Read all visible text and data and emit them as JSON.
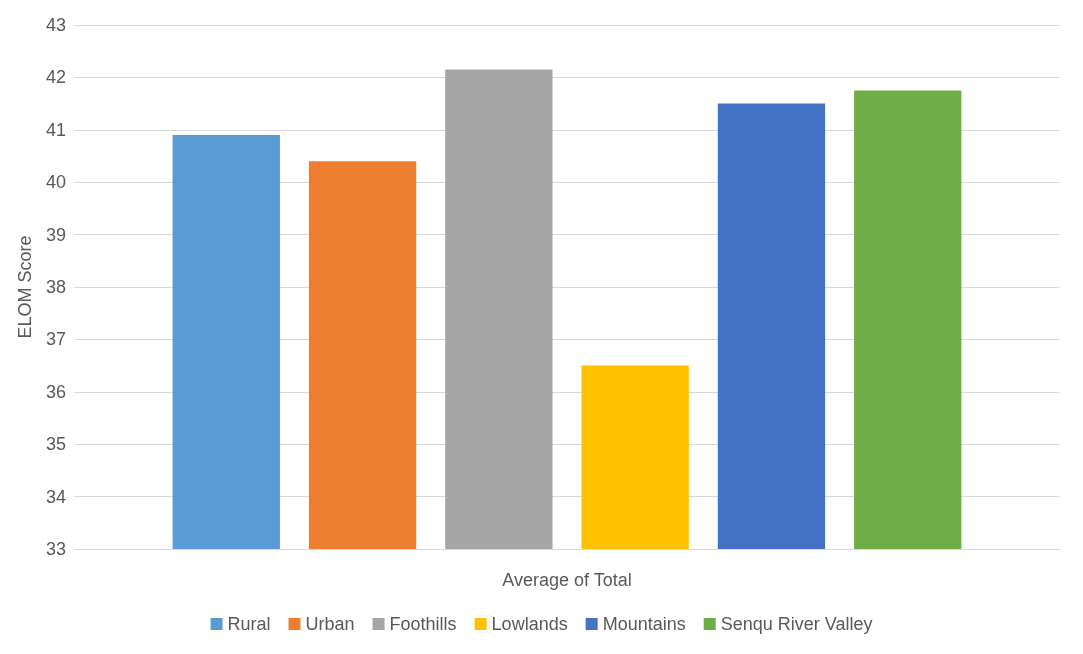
{
  "chart_data": {
    "type": "bar",
    "categories": [
      "Average of Total"
    ],
    "ylabel": "ELOM Score",
    "series": [
      {
        "name": "Rural",
        "color": "#5b9bd5",
        "values": [
          40.9
        ]
      },
      {
        "name": "Urban",
        "color": "#ed7d31",
        "values": [
          40.4
        ]
      },
      {
        "name": "Foothills",
        "color": "#a5a5a5",
        "values": [
          42.15
        ]
      },
      {
        "name": "Lowlands",
        "color": "#ffc000",
        "values": [
          36.5
        ]
      },
      {
        "name": "Mountains",
        "color": "#4472c4",
        "values": [
          41.5
        ]
      },
      {
        "name": "Senqu River Valley",
        "color": "#70ad47",
        "values": [
          41.75
        ]
      }
    ],
    "ylim": [
      33,
      43
    ],
    "yticks": [
      33,
      34,
      35,
      36,
      37,
      38,
      39,
      40,
      41,
      42,
      43
    ],
    "grid": "y",
    "legend": "bottom"
  }
}
